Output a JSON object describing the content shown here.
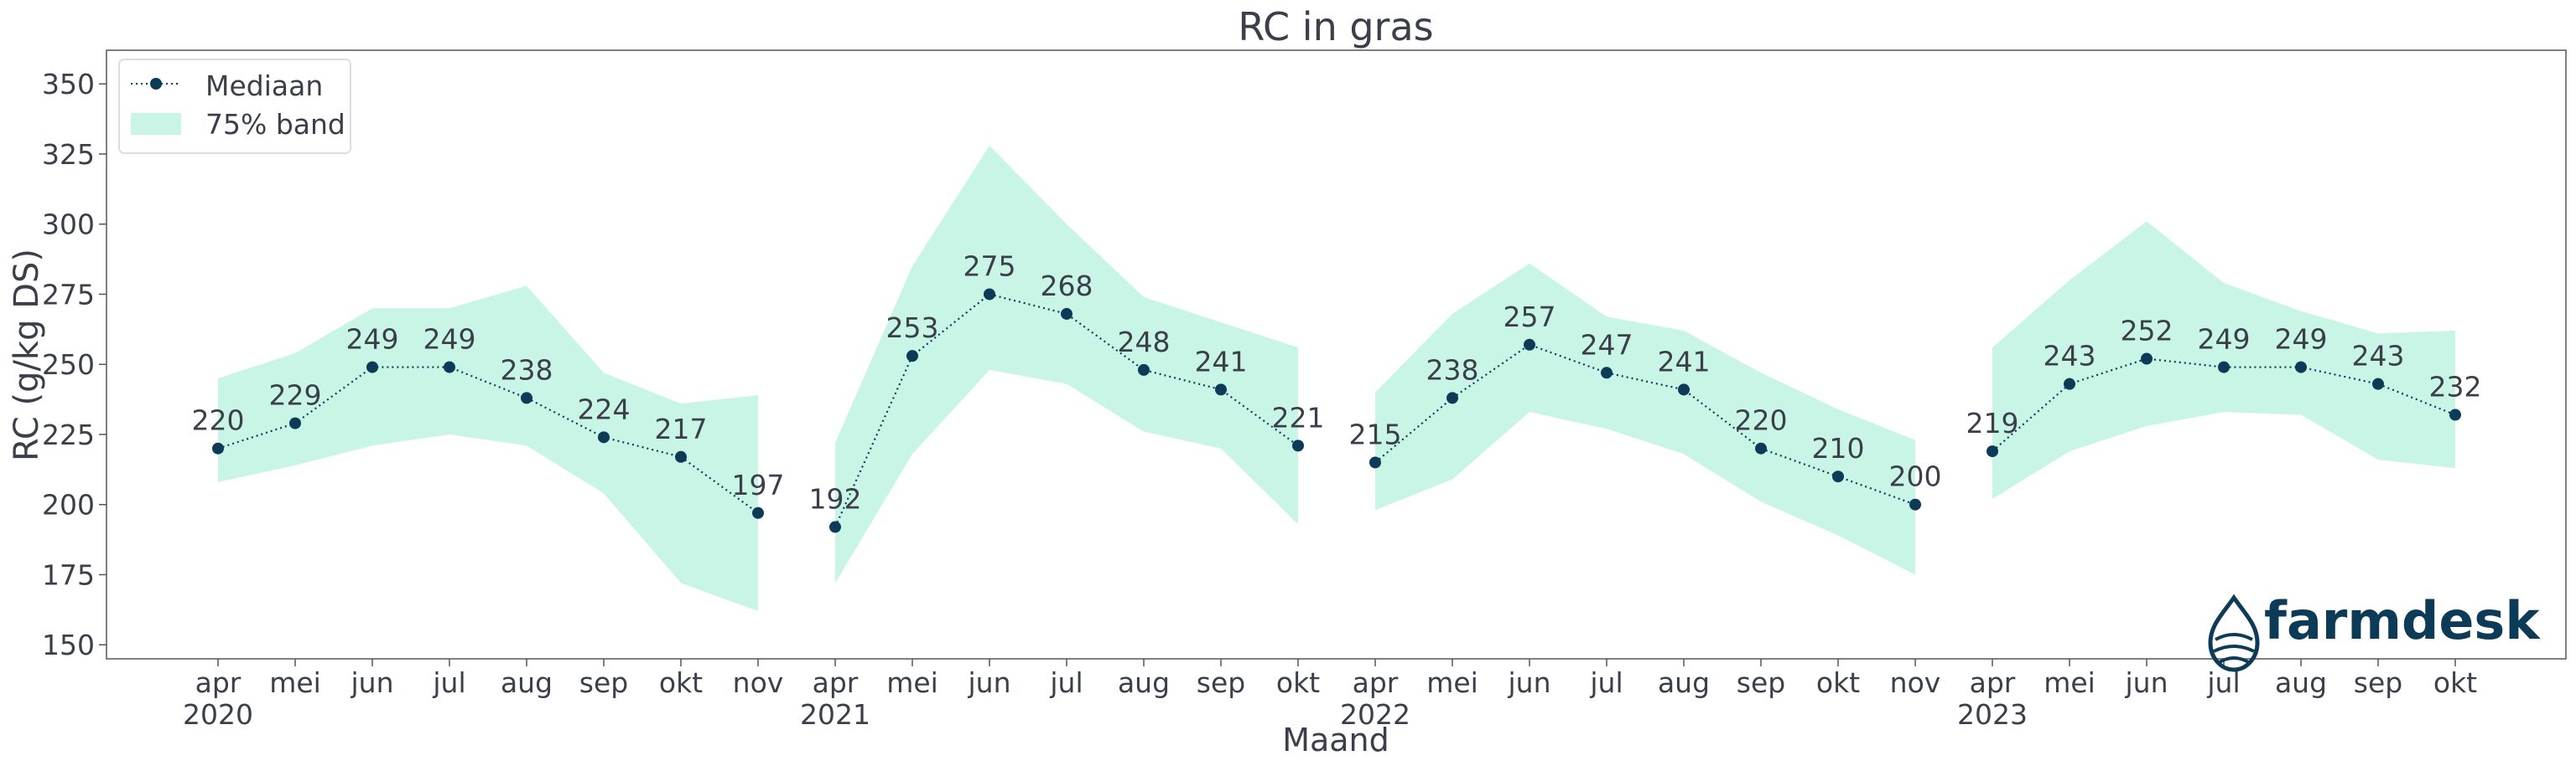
{
  "brand": {
    "logo_text": "farmdesk",
    "logo_color": "#0d3b57"
  },
  "colors": {
    "band": "#c8f5e6",
    "median": "#0d3b57",
    "text": "#3b3f4a",
    "axis": "#555555"
  },
  "chart_data": {
    "type": "line",
    "title": "RC in gras",
    "xlabel": "Maand",
    "ylabel": "RC (g/kg DS)",
    "ylim": [
      145,
      362
    ],
    "yticks": [
      150,
      175,
      200,
      225,
      250,
      275,
      300,
      325,
      350
    ],
    "grid": false,
    "legend": {
      "placement": "top-left",
      "entries": [
        "Mediaan",
        "75% band"
      ]
    },
    "segments": [
      {
        "year": "2020",
        "months": [
          "apr",
          "mei",
          "jun",
          "jul",
          "aug",
          "sep",
          "okt",
          "nov"
        ],
        "median": [
          220,
          229,
          249,
          249,
          238,
          224,
          217,
          197
        ],
        "band_low": [
          208,
          214,
          221,
          225,
          221,
          204,
          172,
          162
        ],
        "band_high": [
          245,
          254,
          270,
          270,
          278,
          247,
          236,
          239
        ]
      },
      {
        "year": "2021",
        "months": [
          "apr",
          "mei",
          "jun",
          "jul",
          "aug",
          "sep",
          "okt"
        ],
        "median": [
          192,
          253,
          275,
          268,
          248,
          241,
          221
        ],
        "band_low": [
          172,
          218,
          248,
          243,
          226,
          220,
          193
        ],
        "band_high": [
          222,
          285,
          328,
          300,
          274,
          265,
          256
        ]
      },
      {
        "year": "2022",
        "months": [
          "apr",
          "mei",
          "jun",
          "jul",
          "aug",
          "sep",
          "okt",
          "nov"
        ],
        "median": [
          215,
          238,
          257,
          247,
          241,
          220,
          210,
          200
        ],
        "band_low": [
          198,
          209,
          233,
          227,
          218,
          201,
          189,
          175
        ],
        "band_high": [
          240,
          268,
          286,
          267,
          262,
          247,
          234,
          223
        ]
      },
      {
        "year": "2023",
        "months": [
          "apr",
          "mei",
          "jun",
          "jul",
          "aug",
          "sep",
          "okt"
        ],
        "median": [
          219,
          243,
          252,
          249,
          249,
          243,
          232
        ],
        "band_low": [
          202,
          219,
          228,
          233,
          232,
          216,
          213
        ],
        "band_high": [
          256,
          280,
          301,
          279,
          269,
          261,
          262
        ]
      }
    ]
  }
}
